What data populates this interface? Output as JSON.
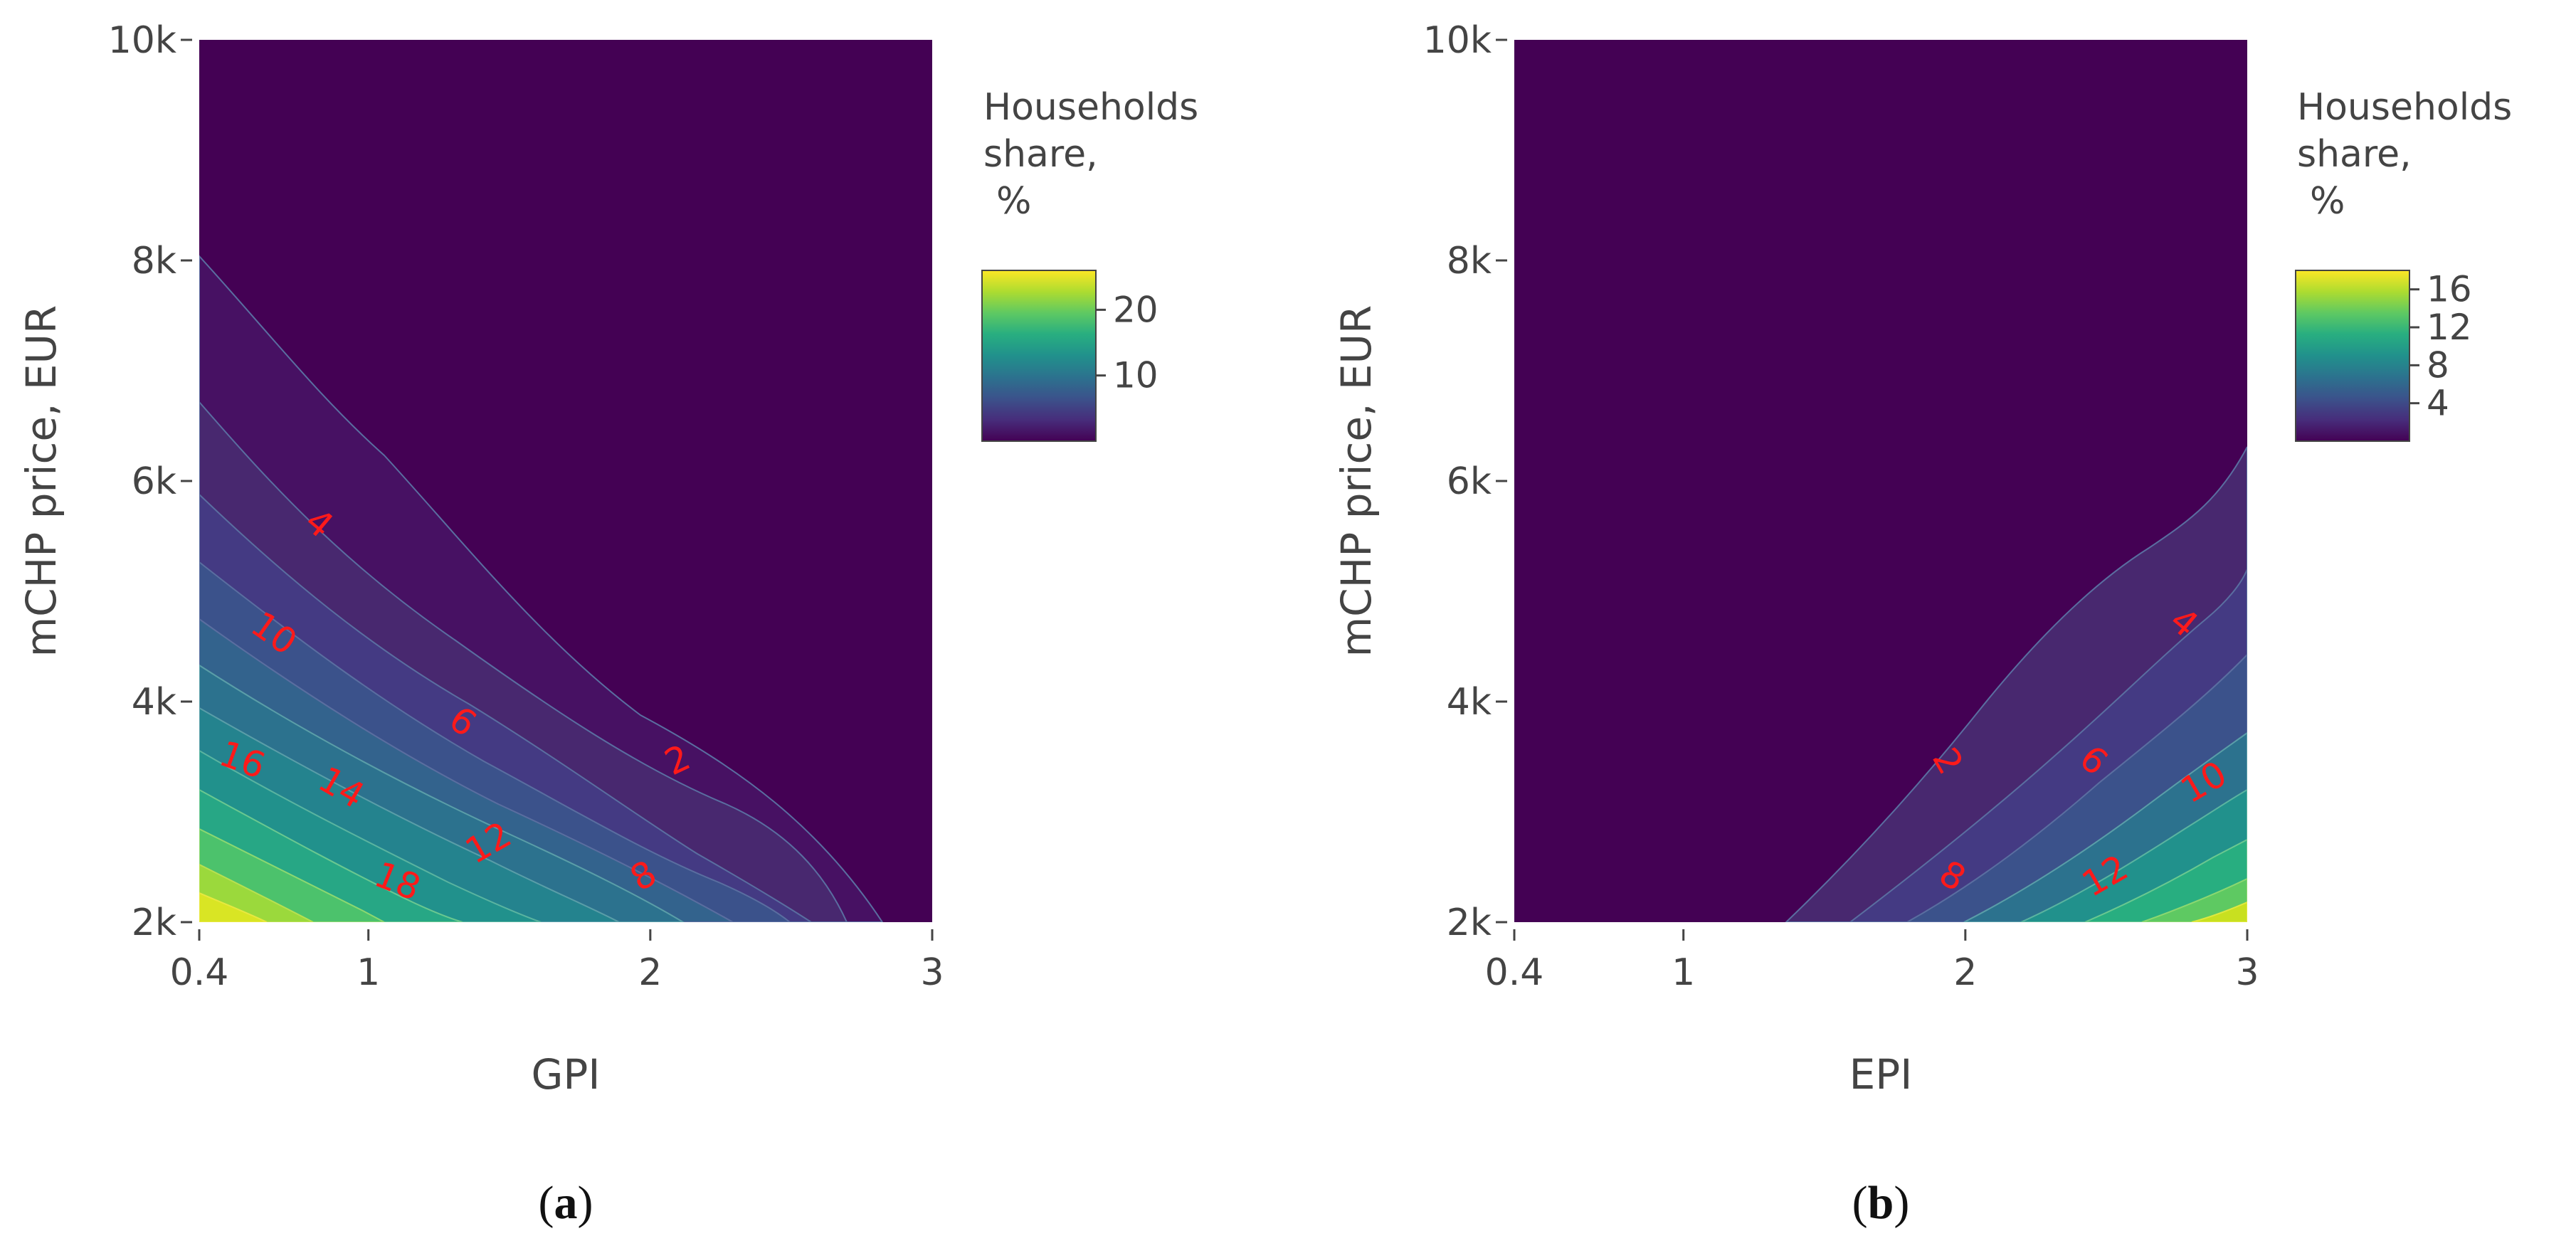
{
  "chart_data": [
    {
      "type": "contour",
      "panel_caption": "(a)",
      "caption_letter": "a",
      "xlabel": "GPI",
      "ylabel": "mCHP price, EUR",
      "xlim": [
        0.4,
        3
      ],
      "ylim": [
        2000,
        10000
      ],
      "x_ticks": [
        0.4,
        1,
        2,
        3
      ],
      "x_tick_labels": [
        "0.4",
        "1",
        "2",
        "3"
      ],
      "y_ticks": [
        2000,
        4000,
        6000,
        8000,
        10000
      ],
      "y_tick_labels": [
        "2k",
        "4k",
        "6k",
        "8k",
        "10k"
      ],
      "colorbar": {
        "title_lines": [
          "Households",
          "share,",
          "%"
        ],
        "range": [
          0,
          26
        ],
        "ticks": [
          10,
          20
        ],
        "tick_labels": [
          "10",
          "20"
        ],
        "colorscale": [
          "#440154",
          "#472d7b",
          "#3b528b",
          "#2c728e",
          "#21918c",
          "#28ae80",
          "#5ec962",
          "#addc30",
          "#fde725"
        ]
      },
      "contour_levels": [
        2,
        4,
        6,
        8,
        10,
        12,
        14,
        16,
        18,
        20,
        22,
        24
      ],
      "contour_labels": [
        {
          "text": "2",
          "x": 2.1,
          "y": 3450,
          "angle": -25
        },
        {
          "text": "4",
          "x": 0.82,
          "y": 5600,
          "angle": 40
        },
        {
          "text": "6",
          "x": 1.33,
          "y": 3800,
          "angle": 35
        },
        {
          "text": "8",
          "x": 1.98,
          "y": 2400,
          "angle": -30
        },
        {
          "text": "10",
          "x": 0.66,
          "y": 4600,
          "angle": 35
        },
        {
          "text": "12",
          "x": 1.43,
          "y": 2700,
          "angle": -30
        },
        {
          "text": "14",
          "x": 0.9,
          "y": 3200,
          "angle": 30
        },
        {
          "text": "16",
          "x": 0.55,
          "y": 3450,
          "angle": 20
        },
        {
          "text": "18",
          "x": 1.1,
          "y": 2350,
          "angle": 22
        }
      ]
    },
    {
      "type": "contour",
      "panel_caption": "(b)",
      "caption_letter": "b",
      "xlabel": "EPI",
      "ylabel": "mCHP price, EUR",
      "xlim": [
        0.4,
        3
      ],
      "ylim": [
        2000,
        10000
      ],
      "x_ticks": [
        0.4,
        1,
        2,
        3
      ],
      "x_tick_labels": [
        "0.4",
        "1",
        "2",
        "3"
      ],
      "y_ticks": [
        2000,
        4000,
        6000,
        8000,
        10000
      ],
      "y_tick_labels": [
        "2k",
        "4k",
        "6k",
        "8k",
        "10k"
      ],
      "colorbar": {
        "title_lines": [
          "Households",
          "share,",
          "%"
        ],
        "range": [
          0,
          18
        ],
        "ticks": [
          4,
          8,
          12,
          16
        ],
        "tick_labels": [
          "4",
          "8",
          "12",
          "16"
        ],
        "colorscale": [
          "#440154",
          "#472d7b",
          "#3b528b",
          "#2c728e",
          "#21918c",
          "#28ae80",
          "#5ec962",
          "#addc30",
          "#fde725"
        ]
      },
      "contour_levels": [
        2,
        4,
        6,
        8,
        10,
        12,
        14,
        16
      ],
      "contour_labels": [
        {
          "text": "2",
          "x": 1.93,
          "y": 3450,
          "angle": 60
        },
        {
          "text": "4",
          "x": 2.77,
          "y": 4700,
          "angle": 40
        },
        {
          "text": "6",
          "x": 2.45,
          "y": 3450,
          "angle": 40
        },
        {
          "text": "8",
          "x": 1.95,
          "y": 2400,
          "angle": 30
        },
        {
          "text": "10",
          "x": 2.85,
          "y": 3250,
          "angle": -30
        },
        {
          "text": "12",
          "x": 2.5,
          "y": 2400,
          "angle": -30
        }
      ]
    }
  ]
}
